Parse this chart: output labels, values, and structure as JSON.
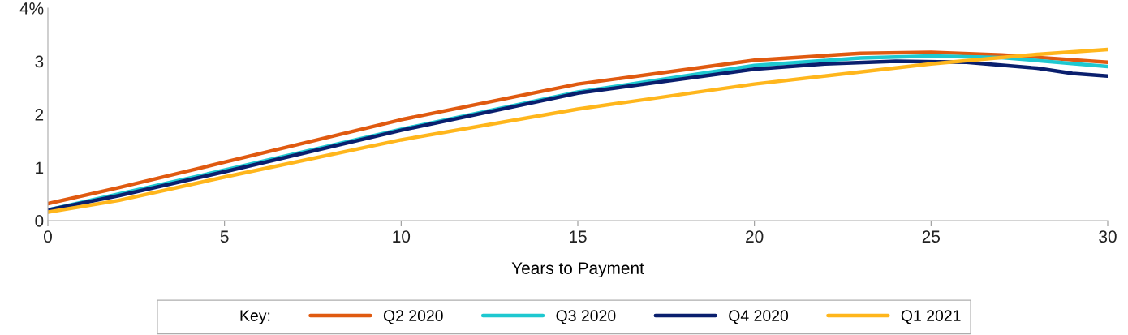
{
  "chart_data": {
    "type": "line",
    "xlabel": "Years to Payment",
    "legend_title": "Key:",
    "legend": "bottom",
    "grid": false,
    "marker": "none",
    "line_style": "solid",
    "xlim": [
      0,
      30
    ],
    "xticks": [
      0,
      5,
      10,
      15,
      20,
      25,
      30
    ],
    "ylim": [
      0,
      4
    ],
    "yticks": [
      0,
      1,
      2,
      3,
      {
        "value": 4,
        "label": "4%"
      }
    ],
    "series": [
      {
        "name": "Q2 2020",
        "color": "#e05a10",
        "x": [
          0,
          2,
          5,
          10,
          15,
          20,
          23,
          25,
          27,
          30
        ],
        "values": [
          0.32,
          0.62,
          1.1,
          1.9,
          2.57,
          3.02,
          3.15,
          3.17,
          3.12,
          2.98
        ]
      },
      {
        "name": "Q3 2020",
        "color": "#1ec8d0",
        "x": [
          0,
          2,
          5,
          10,
          15,
          20,
          23,
          25,
          27,
          30
        ],
        "values": [
          0.2,
          0.5,
          0.95,
          1.72,
          2.42,
          2.92,
          3.06,
          3.1,
          3.07,
          2.9
        ]
      },
      {
        "name": "Q4 2020",
        "color": "#0a1f6e",
        "x": [
          0,
          2,
          5,
          10,
          15,
          20,
          22,
          24,
          26,
          28,
          29,
          30
        ],
        "values": [
          0.2,
          0.47,
          0.92,
          1.7,
          2.4,
          2.85,
          2.95,
          3.0,
          2.98,
          2.87,
          2.77,
          2.72
        ]
      },
      {
        "name": "Q1 2021",
        "color": "#ffb61c",
        "x": [
          0,
          2,
          5,
          10,
          15,
          20,
          25,
          28,
          30
        ],
        "values": [
          0.16,
          0.38,
          0.82,
          1.52,
          2.1,
          2.57,
          2.95,
          3.13,
          3.22
        ]
      }
    ]
  }
}
